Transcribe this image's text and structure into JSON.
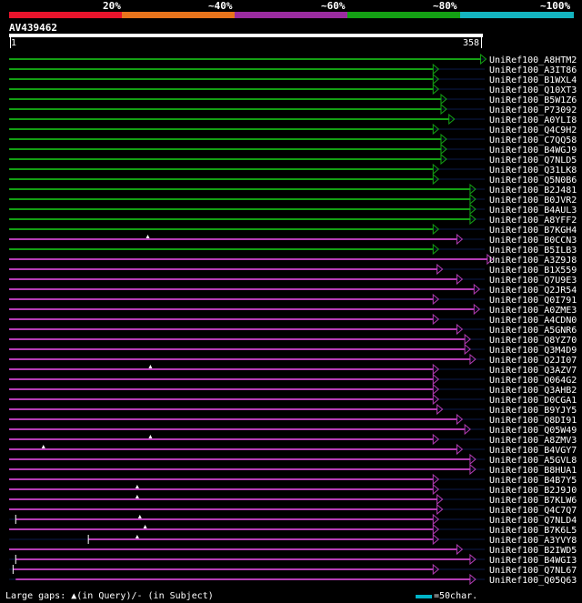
{
  "legend": {
    "labels": [
      "20%",
      "~40%",
      "~60%",
      "~80%",
      "~100%"
    ],
    "colors": [
      "#e8142c",
      "#e8741c",
      "#9b2ca0",
      "#14a014",
      "#14b4c0"
    ]
  },
  "query": {
    "title": "AV439462",
    "start": "1",
    "end": "358",
    "length": 358
  },
  "footer": {
    "text": "Large gaps: ▲(in Query)/- (in Subject)",
    "scale_key": "=50char."
  },
  "hits": [
    {
      "name": "UniRef100_A8HTM2",
      "color": "green",
      "end": 358
    },
    {
      "name": "UniRef100_A3IT86",
      "color": "green",
      "end": 322
    },
    {
      "name": "UniRef100_B1WXL4",
      "color": "green",
      "end": 322
    },
    {
      "name": "UniRef100_Q10XT3",
      "color": "green",
      "end": 322
    },
    {
      "name": "UniRef100_B5W1Z6",
      "color": "green",
      "end": 328
    },
    {
      "name": "UniRef100_P73092",
      "color": "green",
      "end": 328
    },
    {
      "name": "UniRef100_A0YLI8",
      "color": "green",
      "end": 334
    },
    {
      "name": "UniRef100_Q4C9H2",
      "color": "green",
      "end": 322
    },
    {
      "name": "UniRef100_C7QQ58",
      "color": "green",
      "end": 328
    },
    {
      "name": "UniRef100_B4WGJ9",
      "color": "green",
      "end": 328
    },
    {
      "name": "UniRef100_Q7NLD5",
      "color": "green",
      "end": 328
    },
    {
      "name": "UniRef100_Q31LK8",
      "color": "green",
      "end": 322
    },
    {
      "name": "UniRef100_Q5N0B6",
      "color": "green",
      "end": 322
    },
    {
      "name": "UniRef100_B2J481",
      "color": "green",
      "end": 350
    },
    {
      "name": "UniRef100_B0JVR2",
      "color": "green",
      "end": 350
    },
    {
      "name": "UniRef100_B4AUL3",
      "color": "green",
      "end": 350
    },
    {
      "name": "UniRef100_A8YFF2",
      "color": "green",
      "end": 350
    },
    {
      "name": "UniRef100_B7KGH4",
      "color": "green",
      "end": 322
    },
    {
      "name": "UniRef100_B0CCN3",
      "color": "purple",
      "end": 340,
      "qgap": 106
    },
    {
      "name": "UniRef100_B5ILB3",
      "color": "green",
      "end": 322
    },
    {
      "name": "UniRef100_A3Z9J8",
      "color": "purple",
      "end": 363
    },
    {
      "name": "UniRef100_B1X559",
      "color": "purple",
      "end": 325
    },
    {
      "name": "UniRef100_Q7U9E3",
      "color": "purple",
      "end": 340
    },
    {
      "name": "UniRef100_Q2JR54",
      "color": "purple",
      "end": 353
    },
    {
      "name": "UniRef100_Q0I791",
      "color": "purple",
      "end": 322
    },
    {
      "name": "UniRef100_A0ZME3",
      "color": "purple",
      "end": 353
    },
    {
      "name": "UniRef100_A4CDN0",
      "color": "purple",
      "end": 322
    },
    {
      "name": "UniRef100_A5GNR6",
      "color": "purple",
      "end": 340
    },
    {
      "name": "UniRef100_Q8YZ70",
      "color": "purple",
      "end": 346
    },
    {
      "name": "UniRef100_Q3M4D9",
      "color": "purple",
      "end": 346
    },
    {
      "name": "UniRef100_Q2JI07",
      "color": "purple",
      "end": 350
    },
    {
      "name": "UniRef100_Q3AZV7",
      "color": "purple",
      "end": 322,
      "qgap": 108
    },
    {
      "name": "UniRef100_Q064G2",
      "color": "purple",
      "end": 322
    },
    {
      "name": "UniRef100_Q3AHB2",
      "color": "purple",
      "end": 322
    },
    {
      "name": "UniRef100_D0CGA1",
      "color": "purple",
      "end": 322
    },
    {
      "name": "UniRef100_B9YJY5",
      "color": "purple",
      "end": 325
    },
    {
      "name": "UniRef100_Q8DI91",
      "color": "purple",
      "end": 340
    },
    {
      "name": "UniRef100_Q05W49",
      "color": "purple",
      "end": 346
    },
    {
      "name": "UniRef100_A8ZMV3",
      "color": "purple",
      "end": 322,
      "qgap": 108
    },
    {
      "name": "UniRef100_B4VGY7",
      "color": "purple",
      "end": 340,
      "qgap": 27
    },
    {
      "name": "UniRef100_A5GVL8",
      "color": "purple",
      "end": 350
    },
    {
      "name": "UniRef100_B8HUA1",
      "color": "purple",
      "end": 350
    },
    {
      "name": "UniRef100_B4B7Y5",
      "color": "purple",
      "end": 322
    },
    {
      "name": "UniRef100_B2J9J0",
      "color": "purple",
      "end": 322,
      "qgap": 98
    },
    {
      "name": "UniRef100_B7KLW6",
      "color": "purple",
      "end": 325,
      "qgap": 98
    },
    {
      "name": "UniRef100_Q4C7Q7",
      "color": "purple",
      "end": 325
    },
    {
      "name": "UniRef100_Q7NLD4",
      "color": "purple",
      "end": 322,
      "qgap": 100,
      "start": 6,
      "sgap": true
    },
    {
      "name": "UniRef100_B7K6L5",
      "color": "purple",
      "end": 322,
      "qgap": 104
    },
    {
      "name": "UniRef100_A3YVY8",
      "color": "purple",
      "end": 322,
      "start": 61,
      "qgap": 98,
      "sgap": true
    },
    {
      "name": "UniRef100_B2IWD5",
      "color": "purple",
      "end": 340
    },
    {
      "name": "UniRef100_B4WGI3",
      "color": "purple",
      "end": 350,
      "start": 6,
      "sgap": true
    },
    {
      "name": "UniRef100_Q7NL67",
      "color": "purple",
      "end": 322,
      "start": 4,
      "sgap": true
    },
    {
      "name": "UniRef100_Q05Q63",
      "color": "purple",
      "end": 350,
      "start": 6
    }
  ]
}
